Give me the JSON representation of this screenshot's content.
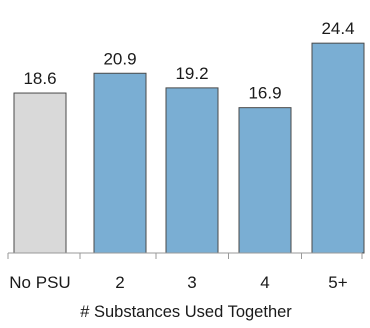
{
  "chart_data": {
    "type": "bar",
    "categories": [
      "No PSU",
      "2",
      "3",
      "4",
      "5+"
    ],
    "values": [
      18.6,
      20.9,
      19.2,
      16.9,
      24.4
    ],
    "data_labels": [
      "18.6",
      "20.9",
      "19.2",
      "16.9",
      "24.4"
    ],
    "title": "",
    "xlabel": "# Substances Used Together",
    "ylabel": "",
    "ylim": [
      0,
      25
    ],
    "grid": false,
    "legend": "none",
    "colors": [
      "#d9d9d9",
      "#7aaed3",
      "#7aaed3",
      "#7aaed3",
      "#7aaed3"
    ],
    "edge_color": "#4a4a4a"
  }
}
